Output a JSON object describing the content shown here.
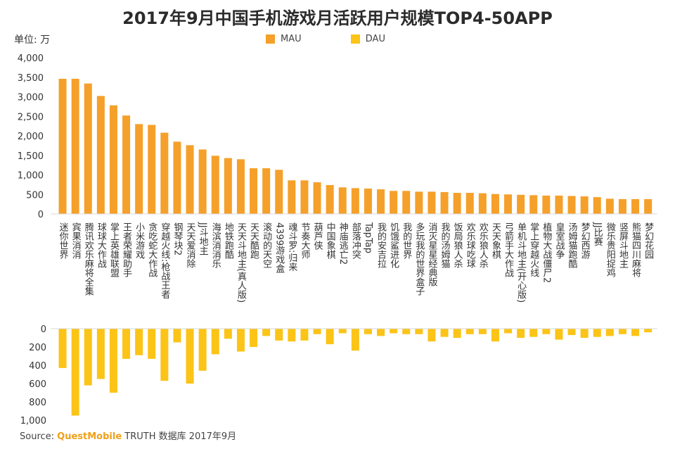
{
  "chart_data": {
    "type": "bar",
    "title": "2017年9月中国手机游戏月活跃用户规模TOP4-50APP",
    "unit": "单位: 万",
    "source_prefix": "Source:",
    "source_brand": "QuestMobile",
    "source_suffix": "TRUTH 数据库 2017年9月",
    "colors": {
      "MAU": "#f5a02a",
      "DAU": "#fbc416"
    },
    "legend": [
      "MAU",
      "DAU"
    ],
    "mau_axis": {
      "ylim": [
        0,
        4000
      ],
      "ticks": [
        "0",
        "500",
        "1,000",
        "1,500",
        "2,000",
        "2,500",
        "3,000",
        "3,500",
        "4,000"
      ]
    },
    "dau_axis": {
      "ylim": [
        0,
        1000
      ],
      "ticks": [
        "0",
        "200",
        "400",
        "600",
        "800",
        "1,000"
      ]
    },
    "categories": [
      "迷你世界",
      "宾果消消",
      "腾讯欢乐麻将全集",
      "球球大作战",
      "掌上英雄联盟",
      "王者荣耀助手",
      "小米游戏",
      "贪吃蛇大作战",
      "穿越火线:枪战王者",
      "钢琴块2",
      "天天爱消除",
      "JJ斗地主",
      "海滨消消乐",
      "地铁跑酷",
      "天天斗地主(真人版)",
      "天天酷跑",
      "滚动的天空",
      "4399游戏盒",
      "魂斗罗:归来",
      "节奏大师",
      "葫芦侠",
      "中国象棋",
      "神庙逃亡2",
      "部落冲突",
      "TapTap",
      "我的安吉拉",
      "饥饿鲨进化",
      "我的世界",
      "多玩我的世界盒子",
      "消灭星星经典版",
      "我的汤姆猫",
      "饭局狼人杀",
      "欢乐球吃球",
      "欢乐狼人杀",
      "天天象棋",
      "弓箭手大作战",
      "单机斗地主(开心版)",
      "掌上穿越火线",
      "植物大战僵尸2",
      "皇室战争",
      "汤姆猫跑酷",
      "梦幻西游",
      "JJ比赛",
      "微乐贵阳捉鸡",
      "竖屏斗地主",
      "熊猫四川麻将",
      "梦幻花园"
    ],
    "series": [
      {
        "name": "MAU",
        "values": [
          3460,
          3460,
          3340,
          3020,
          2780,
          2520,
          2300,
          2280,
          2080,
          1850,
          1760,
          1650,
          1490,
          1430,
          1400,
          1170,
          1170,
          1130,
          860,
          860,
          810,
          740,
          680,
          660,
          650,
          630,
          590,
          590,
          570,
          570,
          560,
          540,
          540,
          530,
          510,
          500,
          490,
          480,
          470,
          470,
          460,
          450,
          430,
          390,
          380,
          380,
          380
        ]
      },
      {
        "name": "DAU",
        "values": [
          430,
          950,
          620,
          550,
          700,
          330,
          290,
          330,
          570,
          150,
          600,
          460,
          280,
          110,
          250,
          200,
          80,
          130,
          140,
          130,
          60,
          170,
          50,
          240,
          60,
          80,
          50,
          60,
          60,
          140,
          90,
          100,
          60,
          60,
          140,
          50,
          100,
          90,
          60,
          120,
          70,
          100,
          90,
          80,
          60,
          80,
          40
        ]
      }
    ]
  }
}
